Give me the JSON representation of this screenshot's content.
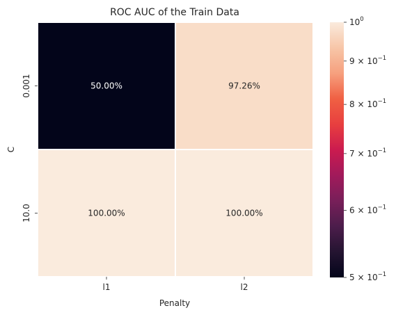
{
  "chart_data": {
    "type": "heatmap",
    "title": "ROC AUC of the Train Data",
    "xlabel": "Penalty",
    "ylabel": "C",
    "x_categories": [
      "l1",
      "l2"
    ],
    "y_categories": [
      "0.001",
      "10.0"
    ],
    "values": [
      [
        0.5,
        0.9726
      ],
      [
        1.0,
        1.0
      ]
    ],
    "annotations": [
      [
        "50.00%",
        "97.26%"
      ],
      [
        "100.00%",
        "100.00%"
      ]
    ],
    "colormap": "rocket",
    "colorbar": {
      "scale": "log",
      "range": [
        0.5,
        1.0
      ],
      "ticks": [
        {
          "value": 1.0,
          "base": "10",
          "exp": "0"
        },
        {
          "value": 0.9,
          "base": "9 × 10",
          "exp": "−1"
        },
        {
          "value": 0.8,
          "base": "8 × 10",
          "exp": "−1"
        },
        {
          "value": 0.7,
          "base": "7 × 10",
          "exp": "−1"
        },
        {
          "value": 0.6,
          "base": "6 × 10",
          "exp": "−1"
        },
        {
          "value": 0.5,
          "base": "5 × 10",
          "exp": "−1"
        }
      ]
    }
  }
}
